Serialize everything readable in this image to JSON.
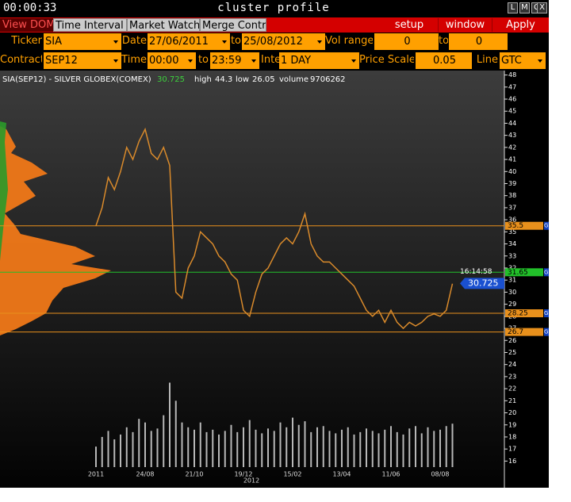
{
  "window": {
    "clock": "00:00:33",
    "title": "cluster profile",
    "buttons": [
      "L",
      "M",
      "C",
      "X"
    ]
  },
  "tabs": [
    "View DOM",
    "Time Interval",
    "Market Watch",
    "Merge Contr"
  ],
  "actions": [
    "setup",
    "window",
    "Apply"
  ],
  "filters": {
    "ticker_label": "Ticker",
    "ticker": "SIA",
    "date_label": "Date",
    "date_from": "27/06/2011",
    "to": "to",
    "date_to": "25/08/2012",
    "vol_label": "Vol range",
    "vol_min": 0,
    "vol_max": 0,
    "contract_label": "Contract",
    "contract": "SEP12",
    "time_label": "Time",
    "time_from": "00:00",
    "time_to": "23:59",
    "interval_label": "Interval",
    "interval": "1 DAY",
    "scale_label": "Price Scale",
    "scale": 0.05,
    "line_label": "Line",
    "line": "GTC"
  },
  "chart_data": {
    "type": "line",
    "title": "SIA(SEP12) - SILVER GLOBEX(COMEX)",
    "last_price": 30.725,
    "high_label": "high",
    "high": 44.3,
    "low_label": "low",
    "low": 26.05,
    "volume_label": "volume",
    "volume": 9706262,
    "categories": [
      "2011",
      null,
      null,
      null,
      null,
      null,
      null,
      null,
      "24/08",
      null,
      null,
      null,
      null,
      null,
      null,
      null,
      "21/10",
      null,
      null,
      null,
      null,
      null,
      null,
      null,
      "19/12",
      null,
      null,
      null,
      null,
      null,
      null,
      null,
      "15/02",
      null,
      null,
      null,
      null,
      null,
      null,
      null,
      "13/04",
      null,
      null,
      null,
      null,
      null,
      null,
      null,
      "11/06",
      null,
      null,
      null,
      null,
      null,
      null,
      null,
      "08/08",
      null,
      null
    ],
    "year_label": "2012",
    "color": "#d98a2b",
    "values": [
      35.5,
      37,
      39.5,
      38.5,
      40,
      42,
      41,
      42.5,
      43.5,
      41.5,
      41,
      42,
      40.5,
      30,
      29.5,
      32,
      33,
      35,
      34.5,
      34,
      33,
      32.5,
      31.5,
      31,
      28.5,
      28,
      30,
      31.5,
      32,
      33,
      34,
      34.5,
      34,
      35,
      36.5,
      34,
      33,
      32.5,
      32.5,
      32,
      31.5,
      31,
      30.5,
      29.5,
      28.5,
      28,
      28.5,
      27.5,
      28.5,
      27.5,
      27,
      27.5,
      27.2,
      27.5,
      28,
      28.2,
      28,
      28.5,
      30.7
    ],
    "volume_color": "#b8b8b8",
    "volume_values": [
      17.2,
      18,
      18.5,
      17.8,
      18.2,
      18.8,
      18.4,
      19.5,
      19.2,
      18.5,
      18.7,
      19.8,
      22.5,
      21,
      19.2,
      18.8,
      18.6,
      19.2,
      18.4,
      18.6,
      18.2,
      18.5,
      19,
      18.4,
      18.8,
      19.4,
      18.6,
      18.3,
      18.7,
      18.5,
      19.2,
      18.8,
      19.6,
      19,
      19.3,
      18.4,
      18.8,
      18.9,
      18.5,
      18.3,
      18.6,
      18.8,
      18.2,
      18.4,
      18.7,
      18.5,
      18.3,
      18.6,
      18.9,
      18.4,
      18.2,
      18.7,
      18.9,
      18.3,
      18.8,
      18.5,
      18.6,
      18.9,
      19.1
    ],
    "levels": [
      35.5,
      31.65,
      28.25,
      26.7
    ],
    "level_colors": [
      "#e8901c",
      "#22c02a",
      "#e8901c",
      "#e8901c"
    ],
    "level_flag": "G",
    "last_time": "16:14:58",
    "ylim": [
      15.5,
      48.3
    ],
    "yticks": [
      16,
      17,
      18,
      19,
      20,
      21,
      22,
      23,
      24,
      25,
      26,
      27,
      28,
      29,
      30,
      31,
      32,
      33,
      34,
      35,
      36,
      37,
      38,
      39,
      40,
      41,
      42,
      43,
      44,
      45,
      46,
      47,
      48
    ]
  }
}
